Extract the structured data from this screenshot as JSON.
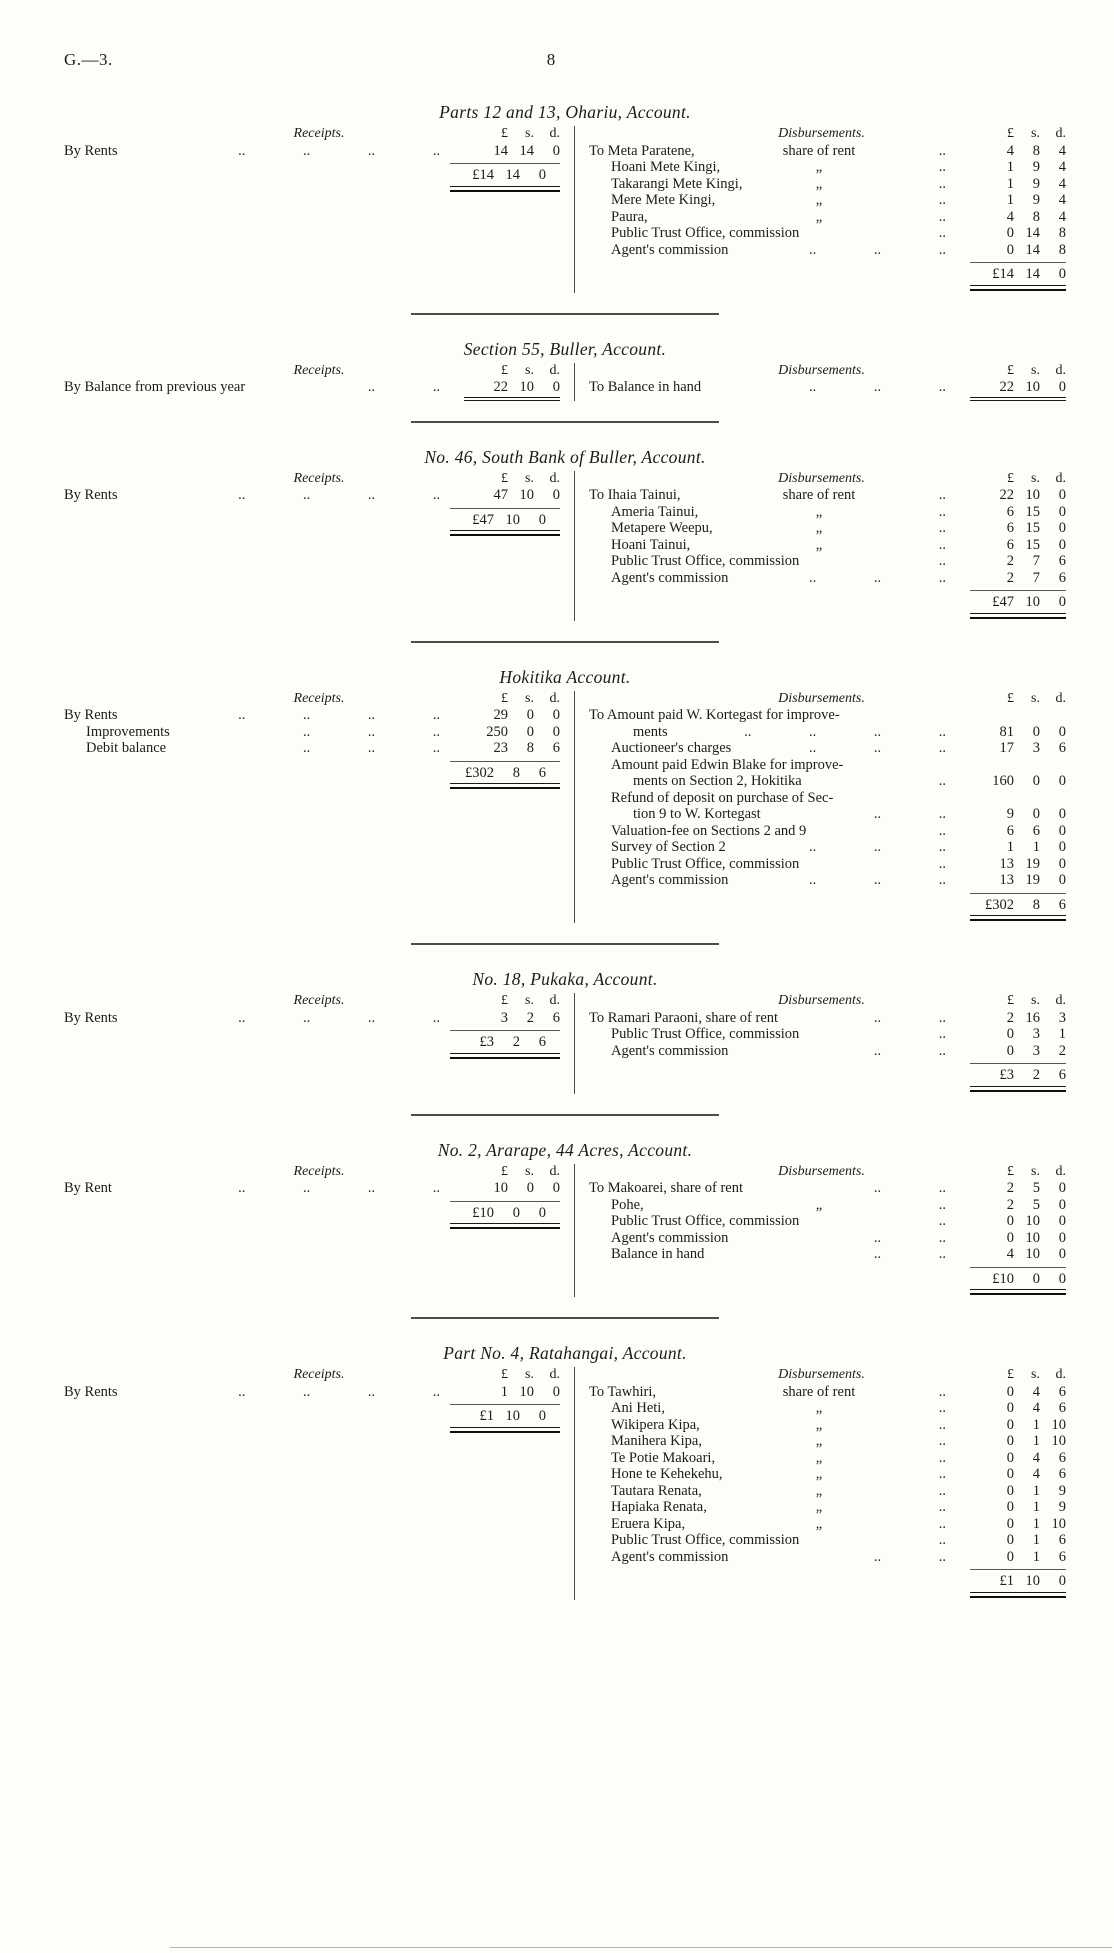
{
  "page": {
    "doc_ref": "G.—3.",
    "page_number": "8"
  },
  "labels": {
    "receipts": "Receipts.",
    "disbursements": "Disbursements.",
    "money_cols": [
      "£",
      "s.",
      "d."
    ]
  },
  "sections": [
    {
      "title": "Parts 12 and 13, Ohariu, Account.",
      "receipts": {
        "rows": [
          {
            "name": "By Rents",
            "dots": ".. .. .. ..",
            "amt": [
              "14",
              "14",
              "0"
            ],
            "indent": 0
          }
        ],
        "total": [
          "£14",
          "14",
          "0"
        ]
      },
      "disbursements": {
        "rows": [
          {
            "name": "To Meta Paratene,",
            "note": "share of rent",
            "dots": "..",
            "amt": [
              "4",
              "8",
              "4"
            ],
            "indent": 0
          },
          {
            "name": "Hoani Mete Kingi,",
            "note": "„",
            "dots": "..",
            "amt": [
              "1",
              "9",
              "4"
            ],
            "indent": 1
          },
          {
            "name": "Takarangi Mete Kingi,",
            "note": "„",
            "dots": "..",
            "amt": [
              "1",
              "9",
              "4"
            ],
            "indent": 1
          },
          {
            "name": "Mere Mete Kingi,",
            "note": "„",
            "dots": "..",
            "amt": [
              "1",
              "9",
              "4"
            ],
            "indent": 1
          },
          {
            "name": "Paura,",
            "note": "„",
            "dots": "..",
            "amt": [
              "4",
              "8",
              "4"
            ],
            "indent": 1
          },
          {
            "name": "Public Trust Office, commission",
            "dots": "..",
            "amt": [
              "0",
              "14",
              "8"
            ],
            "indent": 1
          },
          {
            "name": "Agent's commission",
            "dots": ".. .. ..",
            "amt": [
              "0",
              "14",
              "8"
            ],
            "indent": 1
          }
        ],
        "total": [
          "£14",
          "14",
          "0"
        ]
      }
    },
    {
      "title": "Section 55, Buller, Account.",
      "receipts": {
        "rows": [
          {
            "name": "By Balance from previous year",
            "dots": ".. ..",
            "amt": [
              "22",
              "10",
              "0"
            ],
            "indent": 0,
            "u": true
          }
        ],
        "total": null
      },
      "disbursements": {
        "rows": [
          {
            "name": "To Balance in hand",
            "dots": ".. .. ..",
            "amt": [
              "22",
              "10",
              "0"
            ],
            "indent": 0,
            "u": true
          }
        ],
        "total": null
      }
    },
    {
      "title": "No. 46, South Bank of Buller, Account.",
      "receipts": {
        "rows": [
          {
            "name": "By Rents",
            "dots": ".. .. .. ..",
            "amt": [
              "47",
              "10",
              "0"
            ],
            "indent": 0
          }
        ],
        "total": [
          "£47",
          "10",
          "0"
        ]
      },
      "disbursements": {
        "rows": [
          {
            "name": "To Ihaia Tainui,",
            "note": "share of rent",
            "dots": "..",
            "amt": [
              "22",
              "10",
              "0"
            ],
            "indent": 0
          },
          {
            "name": "Ameria Tainui,",
            "note": "„",
            "dots": "..",
            "amt": [
              "6",
              "15",
              "0"
            ],
            "indent": 1
          },
          {
            "name": "Metapere Weepu,",
            "note": "„",
            "dots": "..",
            "amt": [
              "6",
              "15",
              "0"
            ],
            "indent": 1
          },
          {
            "name": "Hoani Tainui,",
            "note": "„",
            "dots": "..",
            "amt": [
              "6",
              "15",
              "0"
            ],
            "indent": 1
          },
          {
            "name": "Public Trust Office, commission",
            "dots": "..",
            "amt": [
              "2",
              "7",
              "6"
            ],
            "indent": 1
          },
          {
            "name": "Agent's commission",
            "dots": ".. .. ..",
            "amt": [
              "2",
              "7",
              "6"
            ],
            "indent": 1
          }
        ],
        "total": [
          "£47",
          "10",
          "0"
        ]
      }
    },
    {
      "title": "Hokitika Account.",
      "receipts": {
        "rows": [
          {
            "name": "By Rents",
            "dots": ".. .. .. ..",
            "amt": [
              "29",
              "0",
              "0"
            ],
            "indent": 0
          },
          {
            "name": "Improvements",
            "dots": ".. .. ..",
            "amt": [
              "250",
              "0",
              "0"
            ],
            "indent": 1
          },
          {
            "name": "Debit balance",
            "dots": ".. .. ..",
            "amt": [
              "23",
              "8",
              "6"
            ],
            "indent": 1
          }
        ],
        "total": [
          "£302",
          "8",
          "6"
        ]
      },
      "disbursements": {
        "rows": [
          {
            "name": "To Amount paid W. Kortegast for improve-",
            "amt": [
              "",
              "",
              ""
            ],
            "indent": 0
          },
          {
            "name": "ments",
            "dots": ".. .. .. ..",
            "amt": [
              "81",
              "0",
              "0"
            ],
            "indent": 2
          },
          {
            "name": "Auctioneer's charges",
            "dots": ".. .. ..",
            "amt": [
              "17",
              "3",
              "6"
            ],
            "indent": 1
          },
          {
            "name": "Amount paid Edwin Blake for improve-",
            "amt": [
              "",
              "",
              ""
            ],
            "indent": 1
          },
          {
            "name": "ments on Section 2, Hokitika",
            "dots": "..",
            "amt": [
              "160",
              "0",
              "0"
            ],
            "indent": 2
          },
          {
            "name": "Refund of deposit on purchase of Sec-",
            "amt": [
              "",
              "",
              ""
            ],
            "indent": 1
          },
          {
            "name": "tion 9 to W. Kortegast",
            "dots": ".. ..",
            "amt": [
              "9",
              "0",
              "0"
            ],
            "indent": 2
          },
          {
            "name": "Valuation-fee on Sections 2 and 9",
            "dots": "..",
            "amt": [
              "6",
              "6",
              "0"
            ],
            "indent": 1
          },
          {
            "name": "Survey of Section 2",
            "dots": ".. .. ..",
            "amt": [
              "1",
              "1",
              "0"
            ],
            "indent": 1
          },
          {
            "name": "Public Trust Office, commission",
            "dots": "..",
            "amt": [
              "13",
              "19",
              "0"
            ],
            "indent": 1
          },
          {
            "name": "Agent's commission",
            "dots": ".. .. ..",
            "amt": [
              "13",
              "19",
              "0"
            ],
            "indent": 1
          }
        ],
        "total": [
          "£302",
          "8",
          "6"
        ]
      }
    },
    {
      "title": "No. 18, Pukaka, Account.",
      "receipts": {
        "rows": [
          {
            "name": "By Rents",
            "dots": ".. .. .. ..",
            "amt": [
              "3",
              "2",
              "6"
            ],
            "indent": 0
          }
        ],
        "total": [
          "£3",
          "2",
          "6"
        ]
      },
      "disbursements": {
        "rows": [
          {
            "name": "To Ramari Paraoni, share of rent",
            "dots": ".. ..",
            "amt": [
              "2",
              "16",
              "3"
            ],
            "indent": 0
          },
          {
            "name": "Public Trust Office, commission",
            "dots": "..",
            "amt": [
              "0",
              "3",
              "1"
            ],
            "indent": 1
          },
          {
            "name": "Agent's commission",
            "dots": ".. ..",
            "amt": [
              "0",
              "3",
              "2"
            ],
            "indent": 1
          }
        ],
        "total": [
          "£3",
          "2",
          "6"
        ]
      }
    },
    {
      "title": "No. 2, Ararape, 44 Acres, Account.",
      "receipts": {
        "rows": [
          {
            "name": "By Rent",
            "dots": ".. .. .. ..",
            "amt": [
              "10",
              "0",
              "0"
            ],
            "indent": 0
          }
        ],
        "total": [
          "£10",
          "0",
          "0"
        ]
      },
      "disbursements": {
        "rows": [
          {
            "name": "To Makoarei, share of rent",
            "dots": ".. ..",
            "amt": [
              "2",
              "5",
              "0"
            ],
            "indent": 0
          },
          {
            "name": "Pohe,",
            "note": "„",
            "dots": "..",
            "amt": [
              "2",
              "5",
              "0"
            ],
            "indent": 1
          },
          {
            "name": "Public Trust Office, commission",
            "dots": "..",
            "amt": [
              "0",
              "10",
              "0"
            ],
            "indent": 1
          },
          {
            "name": "Agent's commission",
            "dots": ".. ..",
            "amt": [
              "0",
              "10",
              "0"
            ],
            "indent": 1
          },
          {
            "name": "Balance in hand",
            "dots": ".. ..",
            "amt": [
              "4",
              "10",
              "0"
            ],
            "indent": 1
          }
        ],
        "total": [
          "£10",
          "0",
          "0"
        ]
      }
    },
    {
      "title": "Part No. 4, Ratahangai, Account.",
      "receipts": {
        "rows": [
          {
            "name": "By Rents",
            "dots": ".. .. .. ..",
            "amt": [
              "1",
              "10",
              "0"
            ],
            "indent": 0
          }
        ],
        "total": [
          "£1",
          "10",
          "0"
        ]
      },
      "disbursements": {
        "rows": [
          {
            "name": "To Tawhiri,",
            "note": "share of rent",
            "dots": "..",
            "amt": [
              "0",
              "4",
              "6"
            ],
            "indent": 0
          },
          {
            "name": "Ani Heti,",
            "note": "„",
            "dots": "..",
            "amt": [
              "0",
              "4",
              "6"
            ],
            "indent": 1
          },
          {
            "name": "Wikipera Kipa,",
            "note": "„",
            "dots": "..",
            "amt": [
              "0",
              "1",
              "10"
            ],
            "indent": 1
          },
          {
            "name": "Manihera Kipa,",
            "note": "„",
            "dots": "..",
            "amt": [
              "0",
              "1",
              "10"
            ],
            "indent": 1
          },
          {
            "name": "Te Potie Makoari,",
            "note": "„",
            "dots": "..",
            "amt": [
              "0",
              "4",
              "6"
            ],
            "indent": 1
          },
          {
            "name": "Hone te Kehekehu,",
            "note": "„",
            "dots": "..",
            "amt": [
              "0",
              "4",
              "6"
            ],
            "indent": 1
          },
          {
            "name": "Tautara Renata,",
            "note": "„",
            "dots": "..",
            "amt": [
              "0",
              "1",
              "9"
            ],
            "indent": 1
          },
          {
            "name": "Hapiaka Renata,",
            "note": "„",
            "dots": "..",
            "amt": [
              "0",
              "1",
              "9"
            ],
            "indent": 1
          },
          {
            "name": "Eruera Kipa,",
            "note": "„",
            "dots": "..",
            "amt": [
              "0",
              "1",
              "10"
            ],
            "indent": 1
          },
          {
            "name": "Public Trust Office, commission",
            "dots": "..",
            "amt": [
              "0",
              "1",
              "6"
            ],
            "indent": 1
          },
          {
            "name": "Agent's commission",
            "dots": ".. ..",
            "amt": [
              "0",
              "1",
              "6"
            ],
            "indent": 1
          }
        ],
        "total": [
          "£1",
          "10",
          "0"
        ]
      }
    }
  ]
}
